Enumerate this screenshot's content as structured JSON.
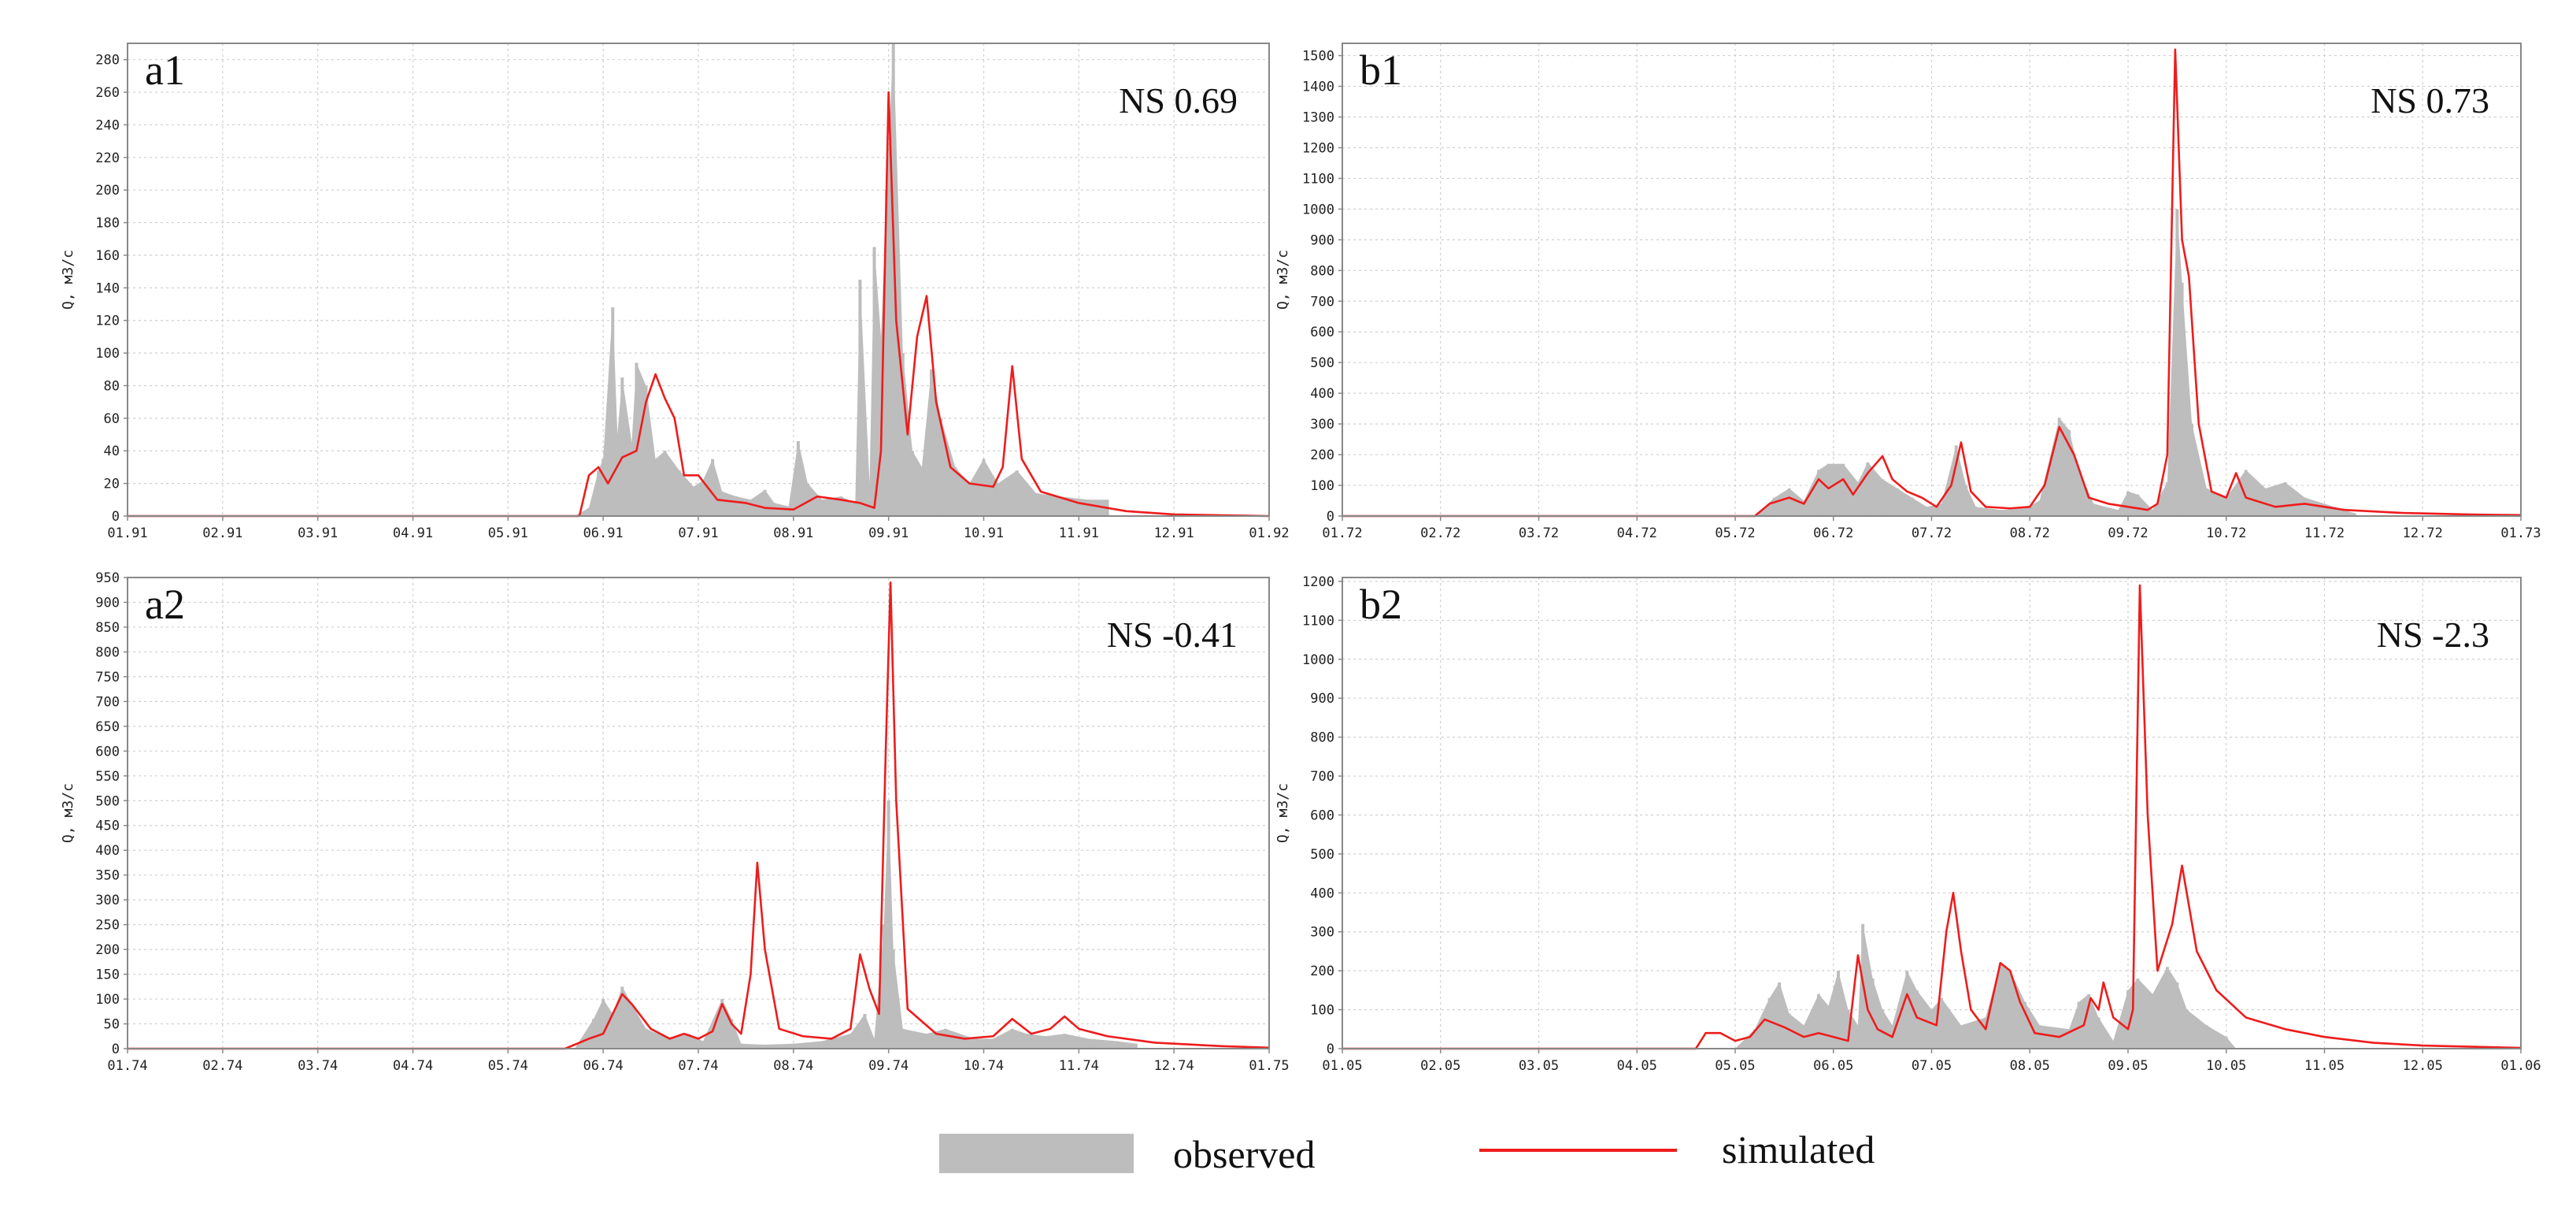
{
  "colors": {
    "observed": "#bdbdbd",
    "simulated": "#ee1c1c",
    "grid": "#cfcfcf",
    "frame": "#888888"
  },
  "legend": {
    "observed": "observed",
    "simulated": "simulated"
  },
  "chart_data": [
    {
      "id": "a1",
      "type": "area",
      "panel_label": "a1",
      "ns_text": "NS 0.69",
      "ylabel": "Q, м3/с",
      "ylim": [
        0,
        290
      ],
      "yticks": [
        0,
        20,
        40,
        60,
        80,
        100,
        120,
        140,
        160,
        180,
        200,
        220,
        240,
        260,
        280
      ],
      "xticks": [
        "01.91",
        "02.91",
        "03.91",
        "04.91",
        "05.91",
        "06.91",
        "07.91",
        "08.91",
        "09.91",
        "10.91",
        "11.91",
        "12.91",
        "01.92"
      ],
      "grid": true,
      "observed": [
        [
          4.7,
          0
        ],
        [
          4.85,
          5
        ],
        [
          4.95,
          28
        ],
        [
          5.0,
          35
        ],
        [
          5.1,
          128
        ],
        [
          5.15,
          50
        ],
        [
          5.2,
          85
        ],
        [
          5.3,
          45
        ],
        [
          5.35,
          94
        ],
        [
          5.45,
          80
        ],
        [
          5.55,
          35
        ],
        [
          5.65,
          40
        ],
        [
          5.8,
          28
        ],
        [
          5.95,
          18
        ],
        [
          6.05,
          22
        ],
        [
          6.15,
          35
        ],
        [
          6.25,
          15
        ],
        [
          6.4,
          12
        ],
        [
          6.55,
          10
        ],
        [
          6.7,
          16
        ],
        [
          6.8,
          8
        ],
        [
          6.95,
          6
        ],
        [
          7.05,
          46
        ],
        [
          7.15,
          20
        ],
        [
          7.3,
          10
        ],
        [
          7.5,
          12
        ],
        [
          7.65,
          8
        ],
        [
          7.7,
          145
        ],
        [
          7.8,
          20
        ],
        [
          7.85,
          165
        ],
        [
          7.92,
          110
        ],
        [
          7.98,
          200
        ],
        [
          8.05,
          290
        ],
        [
          8.15,
          100
        ],
        [
          8.25,
          40
        ],
        [
          8.35,
          30
        ],
        [
          8.45,
          90
        ],
        [
          8.55,
          60
        ],
        [
          8.7,
          30
        ],
        [
          8.85,
          20
        ],
        [
          9.0,
          35
        ],
        [
          9.15,
          20
        ],
        [
          9.35,
          28
        ],
        [
          9.55,
          14
        ],
        [
          9.8,
          12
        ],
        [
          10.1,
          10
        ],
        [
          10.3,
          10
        ],
        [
          10.32,
          0
        ]
      ],
      "simulated": [
        [
          0,
          0
        ],
        [
          4.75,
          0
        ],
        [
          4.85,
          25
        ],
        [
          4.95,
          30
        ],
        [
          5.05,
          20
        ],
        [
          5.2,
          36
        ],
        [
          5.35,
          40
        ],
        [
          5.45,
          70
        ],
        [
          5.55,
          87
        ],
        [
          5.65,
          72
        ],
        [
          5.75,
          60
        ],
        [
          5.85,
          25
        ],
        [
          6.0,
          25
        ],
        [
          6.2,
          10
        ],
        [
          6.5,
          8
        ],
        [
          6.7,
          5
        ],
        [
          7.0,
          4
        ],
        [
          7.25,
          12
        ],
        [
          7.5,
          10
        ],
        [
          7.7,
          8
        ],
        [
          7.85,
          5
        ],
        [
          7.92,
          40
        ],
        [
          8.0,
          260
        ],
        [
          8.08,
          120
        ],
        [
          8.2,
          50
        ],
        [
          8.3,
          110
        ],
        [
          8.4,
          135
        ],
        [
          8.5,
          70
        ],
        [
          8.65,
          30
        ],
        [
          8.85,
          20
        ],
        [
          9.1,
          18
        ],
        [
          9.2,
          30
        ],
        [
          9.3,
          92
        ],
        [
          9.4,
          35
        ],
        [
          9.6,
          15
        ],
        [
          10.0,
          8
        ],
        [
          10.5,
          3
        ],
        [
          11.0,
          1
        ],
        [
          12.0,
          0
        ]
      ]
    },
    {
      "id": "b1",
      "type": "area",
      "panel_label": "b1",
      "ns_text": "NS 0.73",
      "ylabel": "Q, м3/с",
      "ylim": [
        0,
        1540
      ],
      "yticks": [
        0,
        100,
        200,
        300,
        400,
        500,
        600,
        700,
        800,
        900,
        1000,
        1100,
        1200,
        1300,
        1400,
        1500
      ],
      "xticks": [
        "01.72",
        "02.72",
        "03.72",
        "04.72",
        "05.72",
        "06.72",
        "07.72",
        "08.72",
        "09.72",
        "10.72",
        "11.72",
        "12.72",
        "01.73"
      ],
      "grid": true,
      "observed": [
        [
          4.2,
          0
        ],
        [
          4.4,
          60
        ],
        [
          4.55,
          90
        ],
        [
          4.7,
          50
        ],
        [
          4.85,
          150
        ],
        [
          4.95,
          170
        ],
        [
          5.1,
          170
        ],
        [
          5.25,
          110
        ],
        [
          5.35,
          175
        ],
        [
          5.5,
          120
        ],
        [
          5.65,
          90
        ],
        [
          5.8,
          60
        ],
        [
          5.95,
          30
        ],
        [
          6.1,
          40
        ],
        [
          6.25,
          230
        ],
        [
          6.35,
          100
        ],
        [
          6.45,
          30
        ],
        [
          6.7,
          20
        ],
        [
          6.95,
          25
        ],
        [
          7.1,
          50
        ],
        [
          7.3,
          320
        ],
        [
          7.4,
          280
        ],
        [
          7.5,
          150
        ],
        [
          7.65,
          40
        ],
        [
          7.9,
          20
        ],
        [
          8.0,
          80
        ],
        [
          8.1,
          70
        ],
        [
          8.25,
          20
        ],
        [
          8.4,
          110
        ],
        [
          8.5,
          1000
        ],
        [
          8.55,
          760
        ],
        [
          8.65,
          300
        ],
        [
          8.8,
          90
        ],
        [
          9.0,
          60
        ],
        [
          9.2,
          150
        ],
        [
          9.4,
          90
        ],
        [
          9.6,
          110
        ],
        [
          9.8,
          60
        ],
        [
          10.1,
          30
        ],
        [
          10.3,
          10
        ],
        [
          10.35,
          0
        ]
      ],
      "simulated": [
        [
          0,
          0
        ],
        [
          4.2,
          0
        ],
        [
          4.35,
          40
        ],
        [
          4.55,
          60
        ],
        [
          4.7,
          40
        ],
        [
          4.85,
          120
        ],
        [
          4.95,
          90
        ],
        [
          5.1,
          120
        ],
        [
          5.2,
          70
        ],
        [
          5.35,
          140
        ],
        [
          5.5,
          195
        ],
        [
          5.6,
          120
        ],
        [
          5.75,
          80
        ],
        [
          5.9,
          60
        ],
        [
          6.05,
          30
        ],
        [
          6.2,
          100
        ],
        [
          6.3,
          240
        ],
        [
          6.4,
          80
        ],
        [
          6.55,
          30
        ],
        [
          6.8,
          25
        ],
        [
          7.0,
          30
        ],
        [
          7.15,
          100
        ],
        [
          7.3,
          290
        ],
        [
          7.45,
          200
        ],
        [
          7.6,
          60
        ],
        [
          7.8,
          40
        ],
        [
          8.0,
          30
        ],
        [
          8.2,
          20
        ],
        [
          8.3,
          40
        ],
        [
          8.4,
          200
        ],
        [
          8.48,
          1520
        ],
        [
          8.55,
          900
        ],
        [
          8.62,
          780
        ],
        [
          8.72,
          300
        ],
        [
          8.85,
          80
        ],
        [
          9.0,
          60
        ],
        [
          9.1,
          140
        ],
        [
          9.2,
          60
        ],
        [
          9.5,
          30
        ],
        [
          9.8,
          40
        ],
        [
          10.2,
          20
        ],
        [
          10.8,
          10
        ],
        [
          11.5,
          5
        ],
        [
          12.0,
          3
        ]
      ]
    },
    {
      "id": "a2",
      "type": "area",
      "panel_label": "a2",
      "ns_text": "NS -0.41",
      "ylabel": "Q, м3/с",
      "ylim": [
        0,
        950
      ],
      "yticks": [
        0,
        50,
        100,
        150,
        200,
        250,
        300,
        350,
        400,
        450,
        500,
        550,
        600,
        650,
        700,
        750,
        800,
        850,
        900,
        950
      ],
      "xticks": [
        "01.74",
        "02.74",
        "03.74",
        "04.74",
        "05.74",
        "06.74",
        "07.74",
        "08.74",
        "09.74",
        "10.74",
        "11.74",
        "12.74",
        "01.75"
      ],
      "grid": true,
      "observed": [
        [
          4.7,
          0
        ],
        [
          4.9,
          60
        ],
        [
          5.0,
          100
        ],
        [
          5.1,
          70
        ],
        [
          5.2,
          125
        ],
        [
          5.3,
          90
        ],
        [
          5.45,
          40
        ],
        [
          5.7,
          20
        ],
        [
          5.9,
          30
        ],
        [
          6.05,
          15
        ],
        [
          6.25,
          100
        ],
        [
          6.35,
          60
        ],
        [
          6.45,
          10
        ],
        [
          6.7,
          8
        ],
        [
          7.0,
          10
        ],
        [
          7.3,
          15
        ],
        [
          7.6,
          30
        ],
        [
          7.75,
          70
        ],
        [
          7.85,
          20
        ],
        [
          7.95,
          250
        ],
        [
          8.0,
          500
        ],
        [
          8.05,
          200
        ],
        [
          8.15,
          40
        ],
        [
          8.4,
          30
        ],
        [
          8.6,
          40
        ],
        [
          8.9,
          20
        ],
        [
          9.1,
          20
        ],
        [
          9.3,
          40
        ],
        [
          9.45,
          30
        ],
        [
          9.65,
          25
        ],
        [
          9.85,
          30
        ],
        [
          10.1,
          20
        ],
        [
          10.4,
          15
        ],
        [
          10.6,
          10
        ],
        [
          10.62,
          0
        ]
      ],
      "simulated": [
        [
          0,
          0
        ],
        [
          4.6,
          0
        ],
        [
          4.85,
          20
        ],
        [
          5.0,
          30
        ],
        [
          5.1,
          70
        ],
        [
          5.2,
          110
        ],
        [
          5.3,
          90
        ],
        [
          5.5,
          40
        ],
        [
          5.7,
          20
        ],
        [
          5.85,
          30
        ],
        [
          6.0,
          20
        ],
        [
          6.15,
          35
        ],
        [
          6.25,
          90
        ],
        [
          6.35,
          50
        ],
        [
          6.45,
          30
        ],
        [
          6.55,
          150
        ],
        [
          6.62,
          375
        ],
        [
          6.7,
          200
        ],
        [
          6.85,
          40
        ],
        [
          7.1,
          25
        ],
        [
          7.4,
          20
        ],
        [
          7.6,
          40
        ],
        [
          7.7,
          190
        ],
        [
          7.8,
          120
        ],
        [
          7.9,
          70
        ],
        [
          7.97,
          600
        ],
        [
          8.02,
          940
        ],
        [
          8.08,
          500
        ],
        [
          8.2,
          80
        ],
        [
          8.5,
          30
        ],
        [
          8.8,
          20
        ],
        [
          9.1,
          25
        ],
        [
          9.3,
          60
        ],
        [
          9.5,
          30
        ],
        [
          9.7,
          40
        ],
        [
          9.85,
          65
        ],
        [
          10.0,
          40
        ],
        [
          10.3,
          25
        ],
        [
          10.8,
          12
        ],
        [
          11.5,
          5
        ],
        [
          12.0,
          2
        ]
      ]
    },
    {
      "id": "b2",
      "type": "area",
      "panel_label": "b2",
      "ns_text": "NS -2.3",
      "ylabel": "Q, м3/с",
      "ylim": [
        0,
        1210
      ],
      "yticks": [
        0,
        100,
        200,
        300,
        400,
        500,
        600,
        700,
        800,
        900,
        1000,
        1100,
        1200
      ],
      "xticks": [
        "01.05",
        "02.05",
        "03.05",
        "04.05",
        "05.05",
        "06.05",
        "07.05",
        "08.05",
        "09.05",
        "10.05",
        "11.05",
        "12.05",
        "01.06"
      ],
      "grid": true,
      "observed": [
        [
          4.0,
          0
        ],
        [
          4.2,
          50
        ],
        [
          4.35,
          130
        ],
        [
          4.45,
          170
        ],
        [
          4.55,
          90
        ],
        [
          4.7,
          60
        ],
        [
          4.85,
          140
        ],
        [
          4.95,
          110
        ],
        [
          5.05,
          200
        ],
        [
          5.15,
          100
        ],
        [
          5.25,
          60
        ],
        [
          5.3,
          320
        ],
        [
          5.4,
          180
        ],
        [
          5.5,
          100
        ],
        [
          5.6,
          60
        ],
        [
          5.75,
          200
        ],
        [
          5.85,
          150
        ],
        [
          6.0,
          100
        ],
        [
          6.1,
          130
        ],
        [
          6.3,
          60
        ],
        [
          6.55,
          80
        ],
        [
          6.7,
          220
        ],
        [
          6.8,
          200
        ],
        [
          6.95,
          120
        ],
        [
          7.1,
          60
        ],
        [
          7.4,
          50
        ],
        [
          7.5,
          120
        ],
        [
          7.6,
          140
        ],
        [
          7.7,
          80
        ],
        [
          7.85,
          20
        ],
        [
          8.0,
          150
        ],
        [
          8.1,
          180
        ],
        [
          8.25,
          140
        ],
        [
          8.4,
          210
        ],
        [
          8.5,
          170
        ],
        [
          8.6,
          100
        ],
        [
          8.8,
          60
        ],
        [
          9.0,
          30
        ],
        [
          9.1,
          0
        ]
      ],
      "simulated": [
        [
          0,
          0
        ],
        [
          3.6,
          0
        ],
        [
          3.7,
          40
        ],
        [
          3.85,
          40
        ],
        [
          4.0,
          20
        ],
        [
          4.15,
          30
        ],
        [
          4.3,
          75
        ],
        [
          4.5,
          55
        ],
        [
          4.7,
          30
        ],
        [
          4.85,
          40
        ],
        [
          5.0,
          30
        ],
        [
          5.15,
          20
        ],
        [
          5.25,
          240
        ],
        [
          5.35,
          100
        ],
        [
          5.45,
          50
        ],
        [
          5.6,
          30
        ],
        [
          5.75,
          140
        ],
        [
          5.85,
          80
        ],
        [
          6.05,
          60
        ],
        [
          6.15,
          300
        ],
        [
          6.22,
          400
        ],
        [
          6.3,
          250
        ],
        [
          6.4,
          100
        ],
        [
          6.55,
          50
        ],
        [
          6.7,
          220
        ],
        [
          6.8,
          200
        ],
        [
          6.9,
          120
        ],
        [
          7.05,
          40
        ],
        [
          7.3,
          30
        ],
        [
          7.55,
          60
        ],
        [
          7.62,
          130
        ],
        [
          7.7,
          100
        ],
        [
          7.75,
          170
        ],
        [
          7.85,
          80
        ],
        [
          8.0,
          50
        ],
        [
          8.05,
          100
        ],
        [
          8.12,
          1190
        ],
        [
          8.2,
          600
        ],
        [
          8.3,
          200
        ],
        [
          8.45,
          320
        ],
        [
          8.55,
          470
        ],
        [
          8.7,
          250
        ],
        [
          8.9,
          150
        ],
        [
          9.2,
          80
        ],
        [
          9.6,
          50
        ],
        [
          10.0,
          30
        ],
        [
          10.5,
          15
        ],
        [
          11.0,
          8
        ],
        [
          12.0,
          2
        ]
      ]
    }
  ]
}
